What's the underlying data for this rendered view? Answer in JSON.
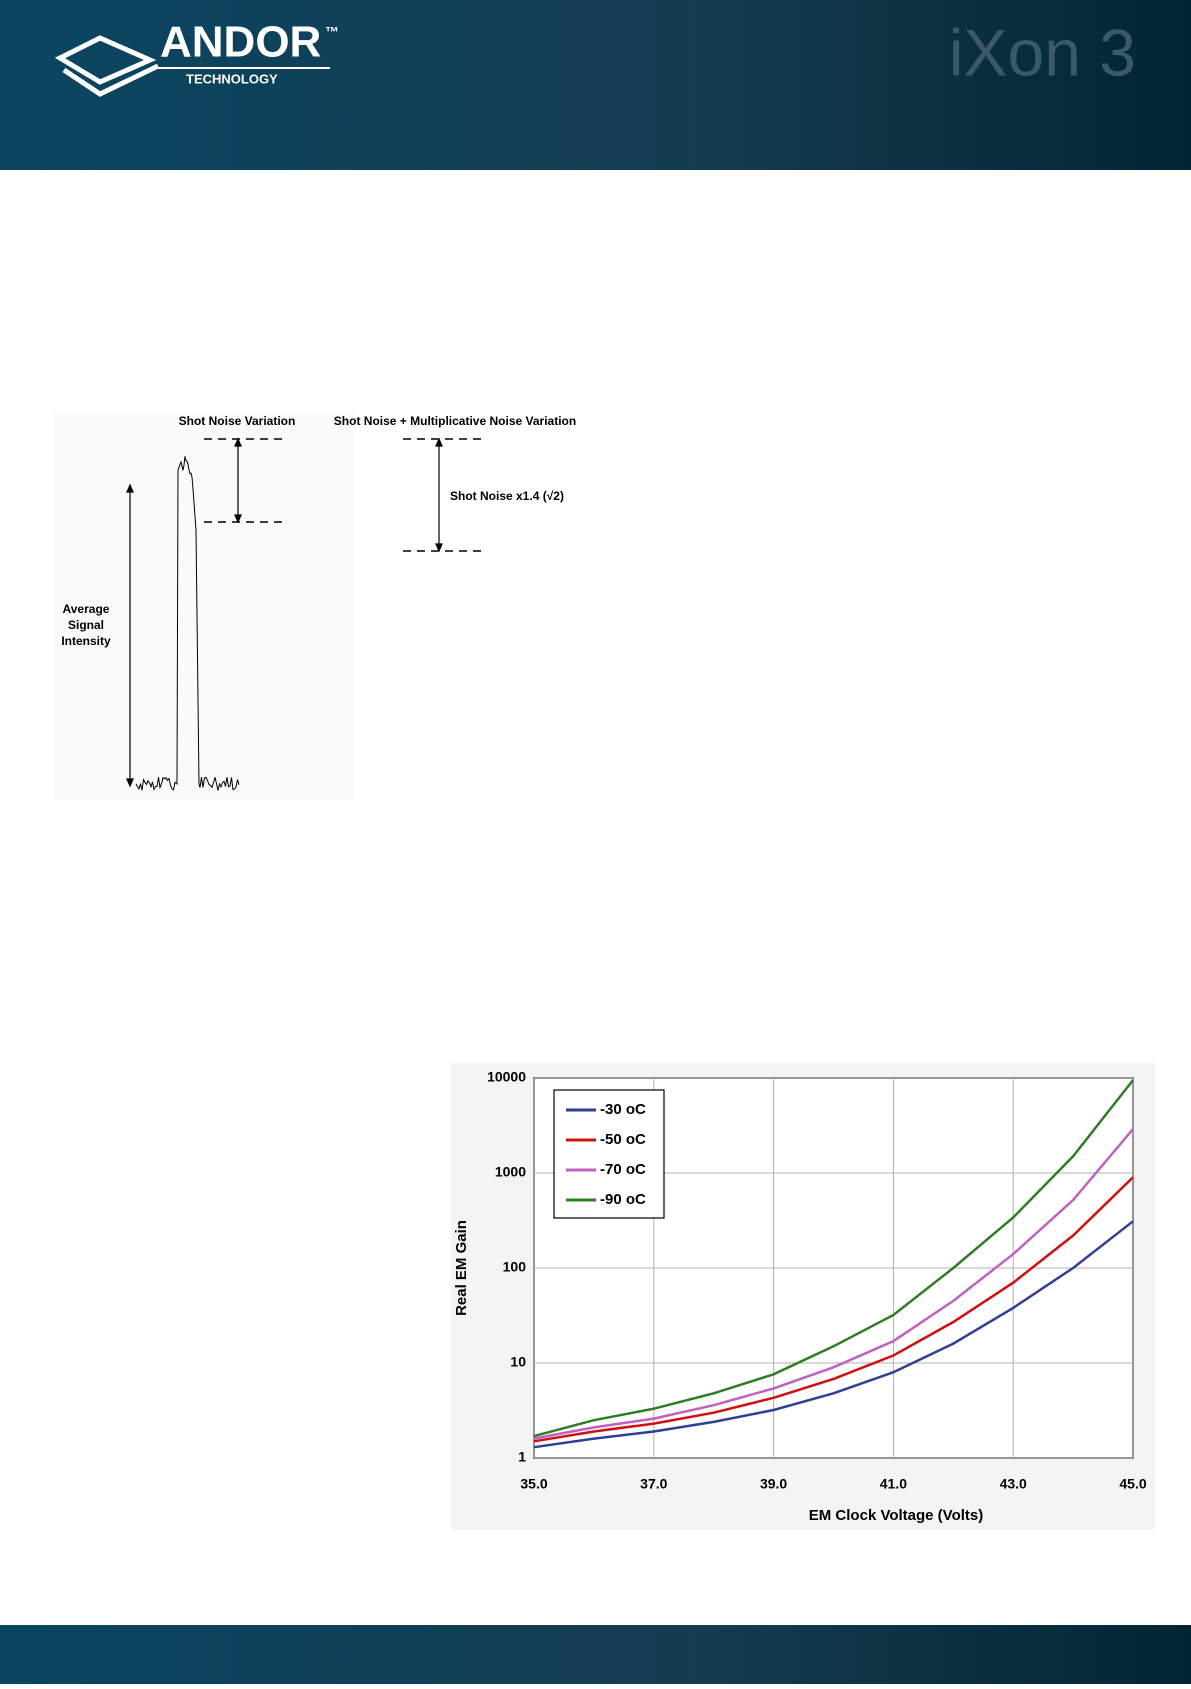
{
  "header": {
    "brand": "ANDOR",
    "trademark": "™",
    "tagline": "TECHNOLOGY",
    "product": "iXon 3"
  },
  "diagram": {
    "left_title": "Shot Noise Variation",
    "right_title": "Shot Noise + Multiplicative Noise Variation",
    "right_label": "Shot Noise x1.4 (√2)",
    "axis_label": [
      "Average",
      "Signal",
      "Intensity"
    ]
  },
  "chart_data": {
    "type": "line",
    "x_label": "EM Clock Voltage (Volts)",
    "y_label": "Real EM Gain",
    "x": [
      35,
      36,
      37,
      38,
      39,
      40,
      41,
      42,
      43,
      44,
      45
    ],
    "series": [
      {
        "name": "-30 oC",
        "color": "#2e3f96",
        "values": [
          1.3,
          1.6,
          1.9,
          2.4,
          3.2,
          4.8,
          8,
          16,
          38,
          100,
          310
        ]
      },
      {
        "name": "-50 oC",
        "color": "#d01010",
        "values": [
          1.5,
          1.9,
          2.3,
          3.0,
          4.3,
          6.8,
          12,
          27,
          70,
          220,
          900
        ]
      },
      {
        "name": "-70 oC",
        "color": "#c060c0",
        "values": [
          1.6,
          2.1,
          2.6,
          3.6,
          5.4,
          9,
          17,
          45,
          140,
          520,
          2900
        ]
      },
      {
        "name": "-90 oC",
        "color": "#2f7d22",
        "values": [
          1.7,
          2.5,
          3.3,
          4.8,
          7.6,
          15,
          32,
          100,
          340,
          1500,
          9500
        ]
      }
    ],
    "xlim": [
      35,
      45
    ],
    "xticks": [
      {
        "value": 35,
        "label": "35.0"
      },
      {
        "value": 37,
        "label": "37.0"
      },
      {
        "value": 39,
        "label": "39.0"
      },
      {
        "value": 41,
        "label": "41.0"
      },
      {
        "value": 43,
        "label": "43.0"
      },
      {
        "value": 45,
        "label": "45.0"
      }
    ],
    "ylim": [
      1,
      10000
    ],
    "yticks": [
      1,
      10,
      100,
      1000,
      10000
    ],
    "log_y": true,
    "grid": true,
    "legend": "top-left"
  }
}
